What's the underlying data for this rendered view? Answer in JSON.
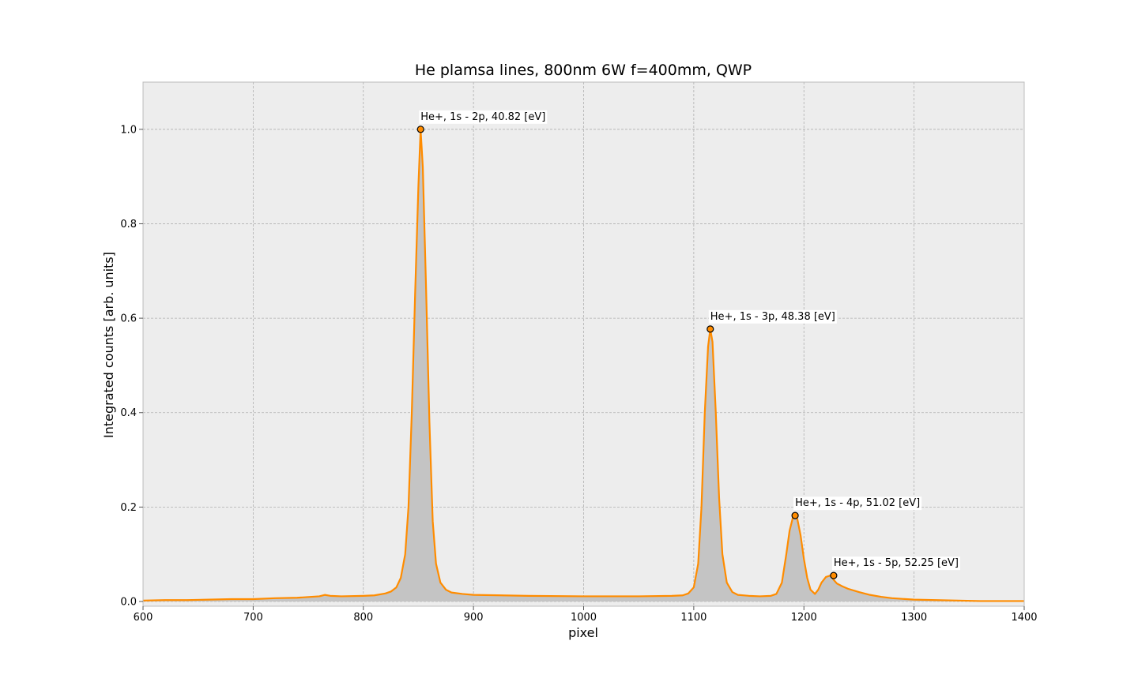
{
  "chart_data": {
    "type": "line",
    "title": "He plamsa lines, 800nm 6W f=400mm, QWP",
    "xlabel": "pixel",
    "ylabel": "Integrated counts [arb. units]",
    "xlim": [
      600,
      1400
    ],
    "ylim": [
      -0.01,
      1.1
    ],
    "xticks": [
      600,
      700,
      800,
      900,
      1000,
      1100,
      1200,
      1300,
      1400
    ],
    "xtick_labels": [
      "600",
      "700",
      "800",
      "900",
      "1000",
      "1100",
      "1200",
      "1300",
      "1400"
    ],
    "yticks": [
      0.0,
      0.2,
      0.4,
      0.6,
      0.8,
      1.0
    ],
    "ytick_labels": [
      "0.0",
      "0.2",
      "0.4",
      "0.6",
      "0.8",
      "1.0"
    ],
    "grid": true,
    "colors": {
      "line": "#ff8c00",
      "fill": "#c4c4c4",
      "plot_bg": "#ededed",
      "grid": "#b0b0b0",
      "marker_edge": "#000000"
    },
    "series": [
      {
        "x": [
          600,
          620,
          640,
          660,
          680,
          700,
          720,
          740,
          760,
          765,
          770,
          780,
          800,
          810,
          820,
          825,
          830,
          834,
          838,
          841,
          844,
          847,
          850,
          852,
          854,
          857,
          860,
          863,
          866,
          870,
          875,
          880,
          890,
          900,
          950,
          1000,
          1050,
          1080,
          1090,
          1095,
          1100,
          1104,
          1107,
          1110,
          1113,
          1115,
          1117,
          1120,
          1123,
          1126,
          1130,
          1135,
          1140,
          1150,
          1160,
          1170,
          1175,
          1180,
          1184,
          1187,
          1190,
          1192,
          1194,
          1197,
          1200,
          1203,
          1206,
          1210,
          1213,
          1216,
          1220,
          1224,
          1227,
          1230,
          1235,
          1240,
          1250,
          1260,
          1270,
          1280,
          1300,
          1320,
          1340,
          1360,
          1380,
          1400
        ],
        "y": [
          0.002,
          0.003,
          0.003,
          0.004,
          0.005,
          0.005,
          0.007,
          0.008,
          0.011,
          0.014,
          0.012,
          0.011,
          0.012,
          0.013,
          0.017,
          0.021,
          0.03,
          0.05,
          0.1,
          0.2,
          0.4,
          0.65,
          0.88,
          1.0,
          0.92,
          0.66,
          0.38,
          0.17,
          0.08,
          0.04,
          0.025,
          0.019,
          0.016,
          0.014,
          0.012,
          0.011,
          0.011,
          0.012,
          0.013,
          0.017,
          0.03,
          0.08,
          0.2,
          0.4,
          0.54,
          0.577,
          0.55,
          0.4,
          0.22,
          0.1,
          0.04,
          0.02,
          0.014,
          0.012,
          0.011,
          0.012,
          0.016,
          0.04,
          0.1,
          0.15,
          0.178,
          0.182,
          0.175,
          0.14,
          0.09,
          0.05,
          0.025,
          0.016,
          0.025,
          0.04,
          0.052,
          0.055,
          0.046,
          0.038,
          0.032,
          0.027,
          0.02,
          0.014,
          0.01,
          0.007,
          0.004,
          0.003,
          0.002,
          0.001,
          0.001,
          0.001
        ]
      }
    ],
    "annotations": [
      {
        "x": 852,
        "y": 1.0,
        "text": "He+, 1s - 2p, 40.82 [eV]"
      },
      {
        "x": 1115,
        "y": 0.577,
        "text": "He+, 1s - 3p, 48.38 [eV]"
      },
      {
        "x": 1192,
        "y": 0.182,
        "text": "He+, 1s - 4p, 51.02 [eV]"
      },
      {
        "x": 1227,
        "y": 0.055,
        "text": "He+, 1s - 5p, 52.25 [eV]"
      }
    ]
  }
}
